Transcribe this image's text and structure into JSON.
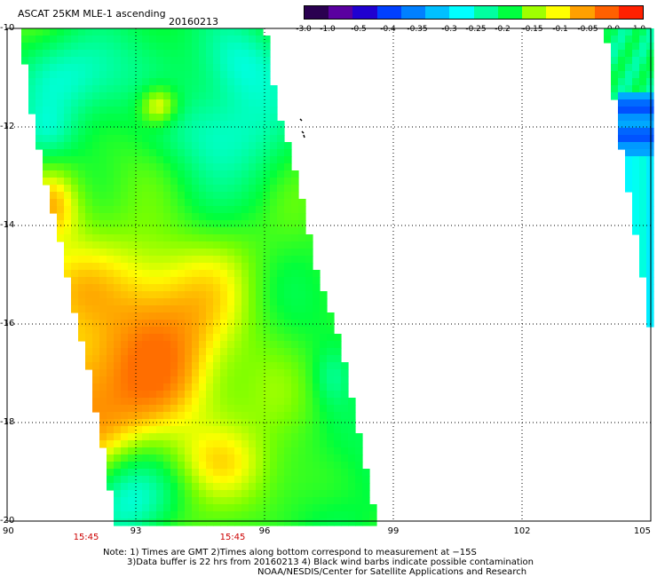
{
  "header": {
    "title": "ASCAT 25KM MLE-1 ascending",
    "date": "20160213"
  },
  "colorbar": {
    "labels": [
      "-3.0",
      "-1.0",
      "-0.5",
      "-0.4",
      "-0.35",
      "-0.3",
      "-0.25",
      "-0.2",
      "-0.15",
      "-0.1",
      "-0.05",
      "0.0",
      "1.0"
    ],
    "colors": [
      "#2a0050",
      "#5a00a0",
      "#2000d0",
      "#0040ff",
      "#0080ff",
      "#00c0ff",
      "#00ffff",
      "#00ffa0",
      "#00ff40",
      "#a0ff00",
      "#ffff00",
      "#ffa000",
      "#ff6000",
      "#ff2000"
    ]
  },
  "map": {
    "lon_range": [
      90,
      105
    ],
    "lat_range": [
      -20,
      -10
    ],
    "lon_ticks": [
      "90",
      "93",
      "96",
      "99",
      "102",
      "105"
    ],
    "lat_ticks": [
      "-10",
      "-12",
      "-14",
      "-16",
      "-18",
      "-20"
    ],
    "time_labels": [
      "15:45",
      "15:45"
    ]
  },
  "footer": {
    "note_line1": "Note: 1) Times are GMT 2)Times along bottom correspond to measurement at −15S",
    "note_line2": "3)Data buffer is 22 hrs from 20160213 4) Black wind barbs indicate possible contamination",
    "credit": "NOAA/NESDIS/Center for Satellite Applications and Research"
  }
}
